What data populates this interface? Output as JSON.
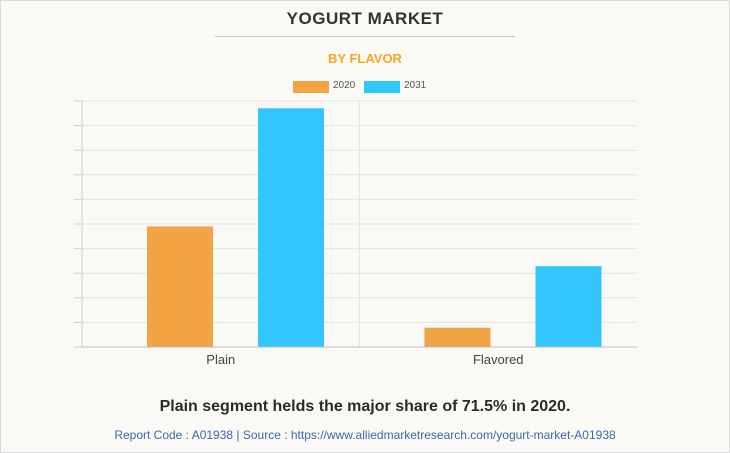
{
  "header": {
    "title": "YOGURT MARKET",
    "subtitle": "BY FLAVOR"
  },
  "colors": {
    "subtitle": "#f5a623",
    "series_2020": "#f2a444",
    "series_2031": "#33c6fc",
    "grid": "#e3e3e3"
  },
  "chart_data": {
    "type": "bar",
    "categories": [
      "Plain",
      "Flavored"
    ],
    "series": [
      {
        "name": "2020",
        "values": [
          5.0,
          0.8
        ]
      },
      {
        "name": "2031",
        "values": [
          9.9,
          3.35
        ]
      }
    ],
    "ylim": [
      0,
      10.2
    ],
    "gridlines": 10,
    "grid": true,
    "legend_position": "top-center",
    "xlabel": "",
    "ylabel": ""
  },
  "footer": {
    "caption": "Plain segment helds the major share of 71.5% in 2020.",
    "source": "Report Code : A01938  |  Source : https://www.alliedmarketresearch.com/yogurt-market-A01938"
  }
}
